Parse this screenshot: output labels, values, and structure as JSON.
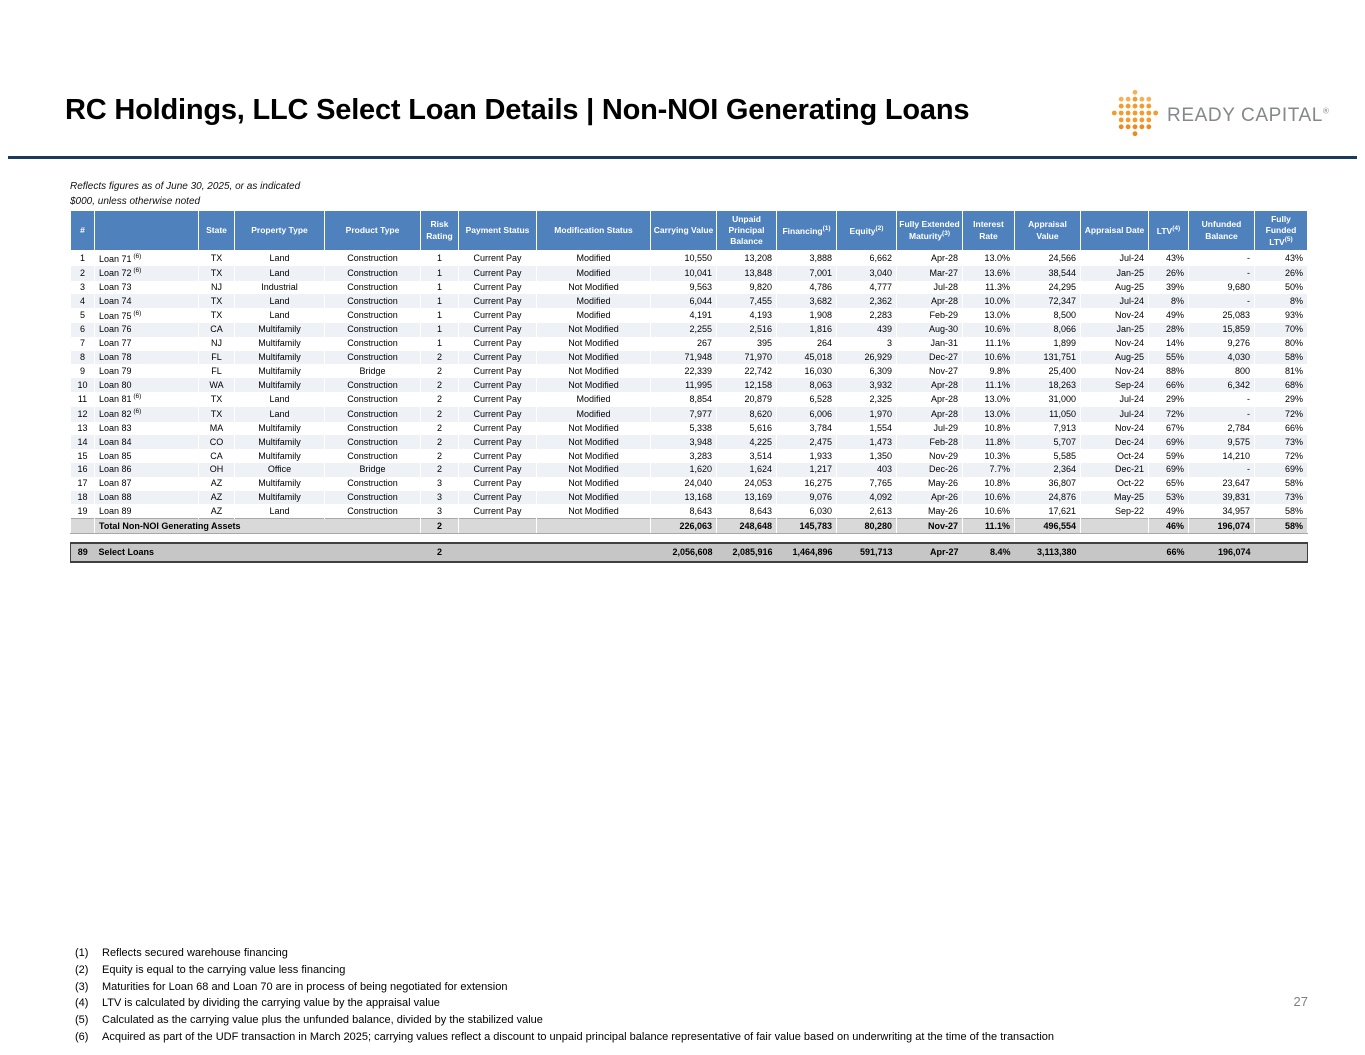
{
  "slide": {
    "title": "RC Holdings, LLC Select Loan Details | Non-NOI Generating Loans",
    "page_number": "27",
    "accent_line_color": "#1b3a5f"
  },
  "logo": {
    "text": "READY CAPITAL",
    "registered": "®",
    "dot_color": "#F39B2D",
    "text_color": "#85878a"
  },
  "notes": [
    "Reflects figures as of June 30, 2025, or as indicated",
    "$000, unless otherwise noted"
  ],
  "table": {
    "header_color": "#4f81bd",
    "headers": [
      {
        "label": "#"
      },
      {
        "label": ""
      },
      {
        "label": "State"
      },
      {
        "label": "Property Type"
      },
      {
        "label": "Product Type"
      },
      {
        "label": "Risk Rating"
      },
      {
        "label": "Payment Status"
      },
      {
        "label": "Modification Status"
      },
      {
        "label": "Carrying Value"
      },
      {
        "label": "Unpaid Principal Balance"
      },
      {
        "label": "Financing",
        "sup": "(1)"
      },
      {
        "label": "Equity",
        "sup": "(2)"
      },
      {
        "label": "Fully Extended Maturity",
        "sup": "(3)"
      },
      {
        "label": "Interest Rate"
      },
      {
        "label": "Appraisal Value"
      },
      {
        "label": "Appraisal Date"
      },
      {
        "label": "LTV",
        "sup": "(4)"
      },
      {
        "label": "Unfunded Balance"
      },
      {
        "label": "Fully Funded LTV",
        "sup": "(5)"
      }
    ],
    "rows": [
      {
        "cells": [
          "1",
          "Loan 71",
          "TX",
          "Land",
          "Construction",
          "1",
          "Current Pay",
          "Modified",
          "10,550",
          "13,208",
          "3,888",
          "6,662",
          "Apr-28",
          "13.0%",
          "24,566",
          "Jul-24",
          "43%",
          "-",
          "43%"
        ],
        "sup": "(6)"
      },
      {
        "cells": [
          "2",
          "Loan 72",
          "TX",
          "Land",
          "Construction",
          "1",
          "Current Pay",
          "Modified",
          "10,041",
          "13,848",
          "7,001",
          "3,040",
          "Mar-27",
          "13.6%",
          "38,544",
          "Jan-25",
          "26%",
          "-",
          "26%"
        ],
        "sup": "(6)"
      },
      {
        "cells": [
          "3",
          "Loan 73",
          "NJ",
          "Industrial",
          "Construction",
          "1",
          "Current Pay",
          "Not Modified",
          "9,563",
          "9,820",
          "4,786",
          "4,777",
          "Jul-28",
          "11.3%",
          "24,295",
          "Aug-25",
          "39%",
          "9,680",
          "50%"
        ]
      },
      {
        "cells": [
          "4",
          "Loan 74",
          "TX",
          "Land",
          "Construction",
          "1",
          "Current Pay",
          "Modified",
          "6,044",
          "7,455",
          "3,682",
          "2,362",
          "Apr-28",
          "10.0%",
          "72,347",
          "Jul-24",
          "8%",
          "-",
          "8%"
        ]
      },
      {
        "cells": [
          "5",
          "Loan 75",
          "TX",
          "Land",
          "Construction",
          "1",
          "Current Pay",
          "Modified",
          "4,191",
          "4,193",
          "1,908",
          "2,283",
          "Feb-29",
          "13.0%",
          "8,500",
          "Nov-24",
          "49%",
          "25,083",
          "93%"
        ],
        "sup": "(6)"
      },
      {
        "cells": [
          "6",
          "Loan 76",
          "CA",
          "Multifamily",
          "Construction",
          "1",
          "Current Pay",
          "Not Modified",
          "2,255",
          "2,516",
          "1,816",
          "439",
          "Aug-30",
          "10.6%",
          "8,066",
          "Jan-25",
          "28%",
          "15,859",
          "70%"
        ]
      },
      {
        "cells": [
          "7",
          "Loan 77",
          "NJ",
          "Multifamily",
          "Construction",
          "1",
          "Current Pay",
          "Not Modified",
          "267",
          "395",
          "264",
          "3",
          "Jan-31",
          "11.1%",
          "1,899",
          "Nov-24",
          "14%",
          "9,276",
          "80%"
        ]
      },
      {
        "cells": [
          "8",
          "Loan 78",
          "FL",
          "Multifamily",
          "Construction",
          "2",
          "Current Pay",
          "Not Modified",
          "71,948",
          "71,970",
          "45,018",
          "26,929",
          "Dec-27",
          "10.6%",
          "131,751",
          "Aug-25",
          "55%",
          "4,030",
          "58%"
        ]
      },
      {
        "cells": [
          "9",
          "Loan 79",
          "FL",
          "Multifamily",
          "Bridge",
          "2",
          "Current Pay",
          "Not Modified",
          "22,339",
          "22,742",
          "16,030",
          "6,309",
          "Nov-27",
          "9.8%",
          "25,400",
          "Nov-24",
          "88%",
          "800",
          "81%"
        ]
      },
      {
        "cells": [
          "10",
          "Loan 80",
          "WA",
          "Multifamily",
          "Construction",
          "2",
          "Current Pay",
          "Not Modified",
          "11,995",
          "12,158",
          "8,063",
          "3,932",
          "Apr-28",
          "11.1%",
          "18,263",
          "Sep-24",
          "66%",
          "6,342",
          "68%"
        ]
      },
      {
        "cells": [
          "11",
          "Loan 81",
          "TX",
          "Land",
          "Construction",
          "2",
          "Current Pay",
          "Modified",
          "8,854",
          "20,879",
          "6,528",
          "2,325",
          "Apr-28",
          "13.0%",
          "31,000",
          "Jul-24",
          "29%",
          "-",
          "29%"
        ],
        "sup": "(6)"
      },
      {
        "cells": [
          "12",
          "Loan 82",
          "TX",
          "Land",
          "Construction",
          "2",
          "Current Pay",
          "Modified",
          "7,977",
          "8,620",
          "6,006",
          "1,970",
          "Apr-28",
          "13.0%",
          "11,050",
          "Jul-24",
          "72%",
          "-",
          "72%"
        ],
        "sup": "(6)"
      },
      {
        "cells": [
          "13",
          "Loan 83",
          "MA",
          "Multifamily",
          "Construction",
          "2",
          "Current Pay",
          "Not Modified",
          "5,338",
          "5,616",
          "3,784",
          "1,554",
          "Jul-29",
          "10.8%",
          "7,913",
          "Nov-24",
          "67%",
          "2,784",
          "66%"
        ]
      },
      {
        "cells": [
          "14",
          "Loan 84",
          "CO",
          "Multifamily",
          "Construction",
          "2",
          "Current Pay",
          "Not Modified",
          "3,948",
          "4,225",
          "2,475",
          "1,473",
          "Feb-28",
          "11.8%",
          "5,707",
          "Dec-24",
          "69%",
          "9,575",
          "73%"
        ]
      },
      {
        "cells": [
          "15",
          "Loan 85",
          "CA",
          "Multifamily",
          "Construction",
          "2",
          "Current Pay",
          "Not Modified",
          "3,283",
          "3,514",
          "1,933",
          "1,350",
          "Nov-29",
          "10.3%",
          "5,585",
          "Oct-24",
          "59%",
          "14,210",
          "72%"
        ]
      },
      {
        "cells": [
          "16",
          "Loan 86",
          "OH",
          "Office",
          "Bridge",
          "2",
          "Current Pay",
          "Not Modified",
          "1,620",
          "1,624",
          "1,217",
          "403",
          "Dec-26",
          "7.7%",
          "2,364",
          "Dec-21",
          "69%",
          "-",
          "69%"
        ]
      },
      {
        "cells": [
          "17",
          "Loan 87",
          "AZ",
          "Multifamily",
          "Construction",
          "3",
          "Current Pay",
          "Not Modified",
          "24,040",
          "24,053",
          "16,275",
          "7,765",
          "May-26",
          "10.8%",
          "36,807",
          "Oct-22",
          "65%",
          "23,647",
          "58%"
        ]
      },
      {
        "cells": [
          "18",
          "Loan 88",
          "AZ",
          "Multifamily",
          "Construction",
          "3",
          "Current Pay",
          "Not Modified",
          "13,168",
          "13,169",
          "9,076",
          "4,092",
          "Apr-26",
          "10.6%",
          "24,876",
          "May-25",
          "53%",
          "39,831",
          "73%"
        ]
      },
      {
        "cells": [
          "19",
          "Loan 89",
          "AZ",
          "Land",
          "Construction",
          "3",
          "Current Pay",
          "Not Modified",
          "8,643",
          "8,643",
          "6,030",
          "2,613",
          "May-26",
          "10.6%",
          "17,621",
          "Sep-22",
          "49%",
          "34,957",
          "58%"
        ]
      }
    ],
    "total_row": {
      "num": "",
      "label": "Total Non-NOI Generating Assets",
      "risk": "2",
      "payment": "",
      "modification": "",
      "values": [
        "226,063",
        "248,648",
        "145,783",
        "80,280",
        "Nov-27",
        "11.1%",
        "496,554",
        "",
        "46%",
        "196,074",
        "58%"
      ]
    },
    "summary_row": {
      "num": "89",
      "label": "Select Loans",
      "risk": "2",
      "payment": "",
      "modification": "",
      "values": [
        "2,056,608",
        "2,085,916",
        "1,464,896",
        "591,713",
        "Apr-27",
        "8.4%",
        "3,113,380",
        "",
        "66%",
        "196,074",
        ""
      ]
    }
  },
  "footnotes": [
    {
      "num": "(1)",
      "text": "Reflects secured warehouse financing"
    },
    {
      "num": "(2)",
      "text": "Equity is equal to the carrying value less financing"
    },
    {
      "num": "(3)",
      "text": "Maturities for Loan 68 and Loan 70 are in process of being negotiated for extension"
    },
    {
      "num": "(4)",
      "text": "LTV is calculated by dividing the carrying value by the appraisal value"
    },
    {
      "num": "(5)",
      "text": "Calculated as the carrying value plus the unfunded balance, divided by the stabilized value"
    },
    {
      "num": "(6)",
      "text": "Acquired as part of the UDF transaction in March 2025; carrying values reflect a discount to unpaid principal balance representative of fair value based on underwriting at the time of the transaction"
    }
  ]
}
